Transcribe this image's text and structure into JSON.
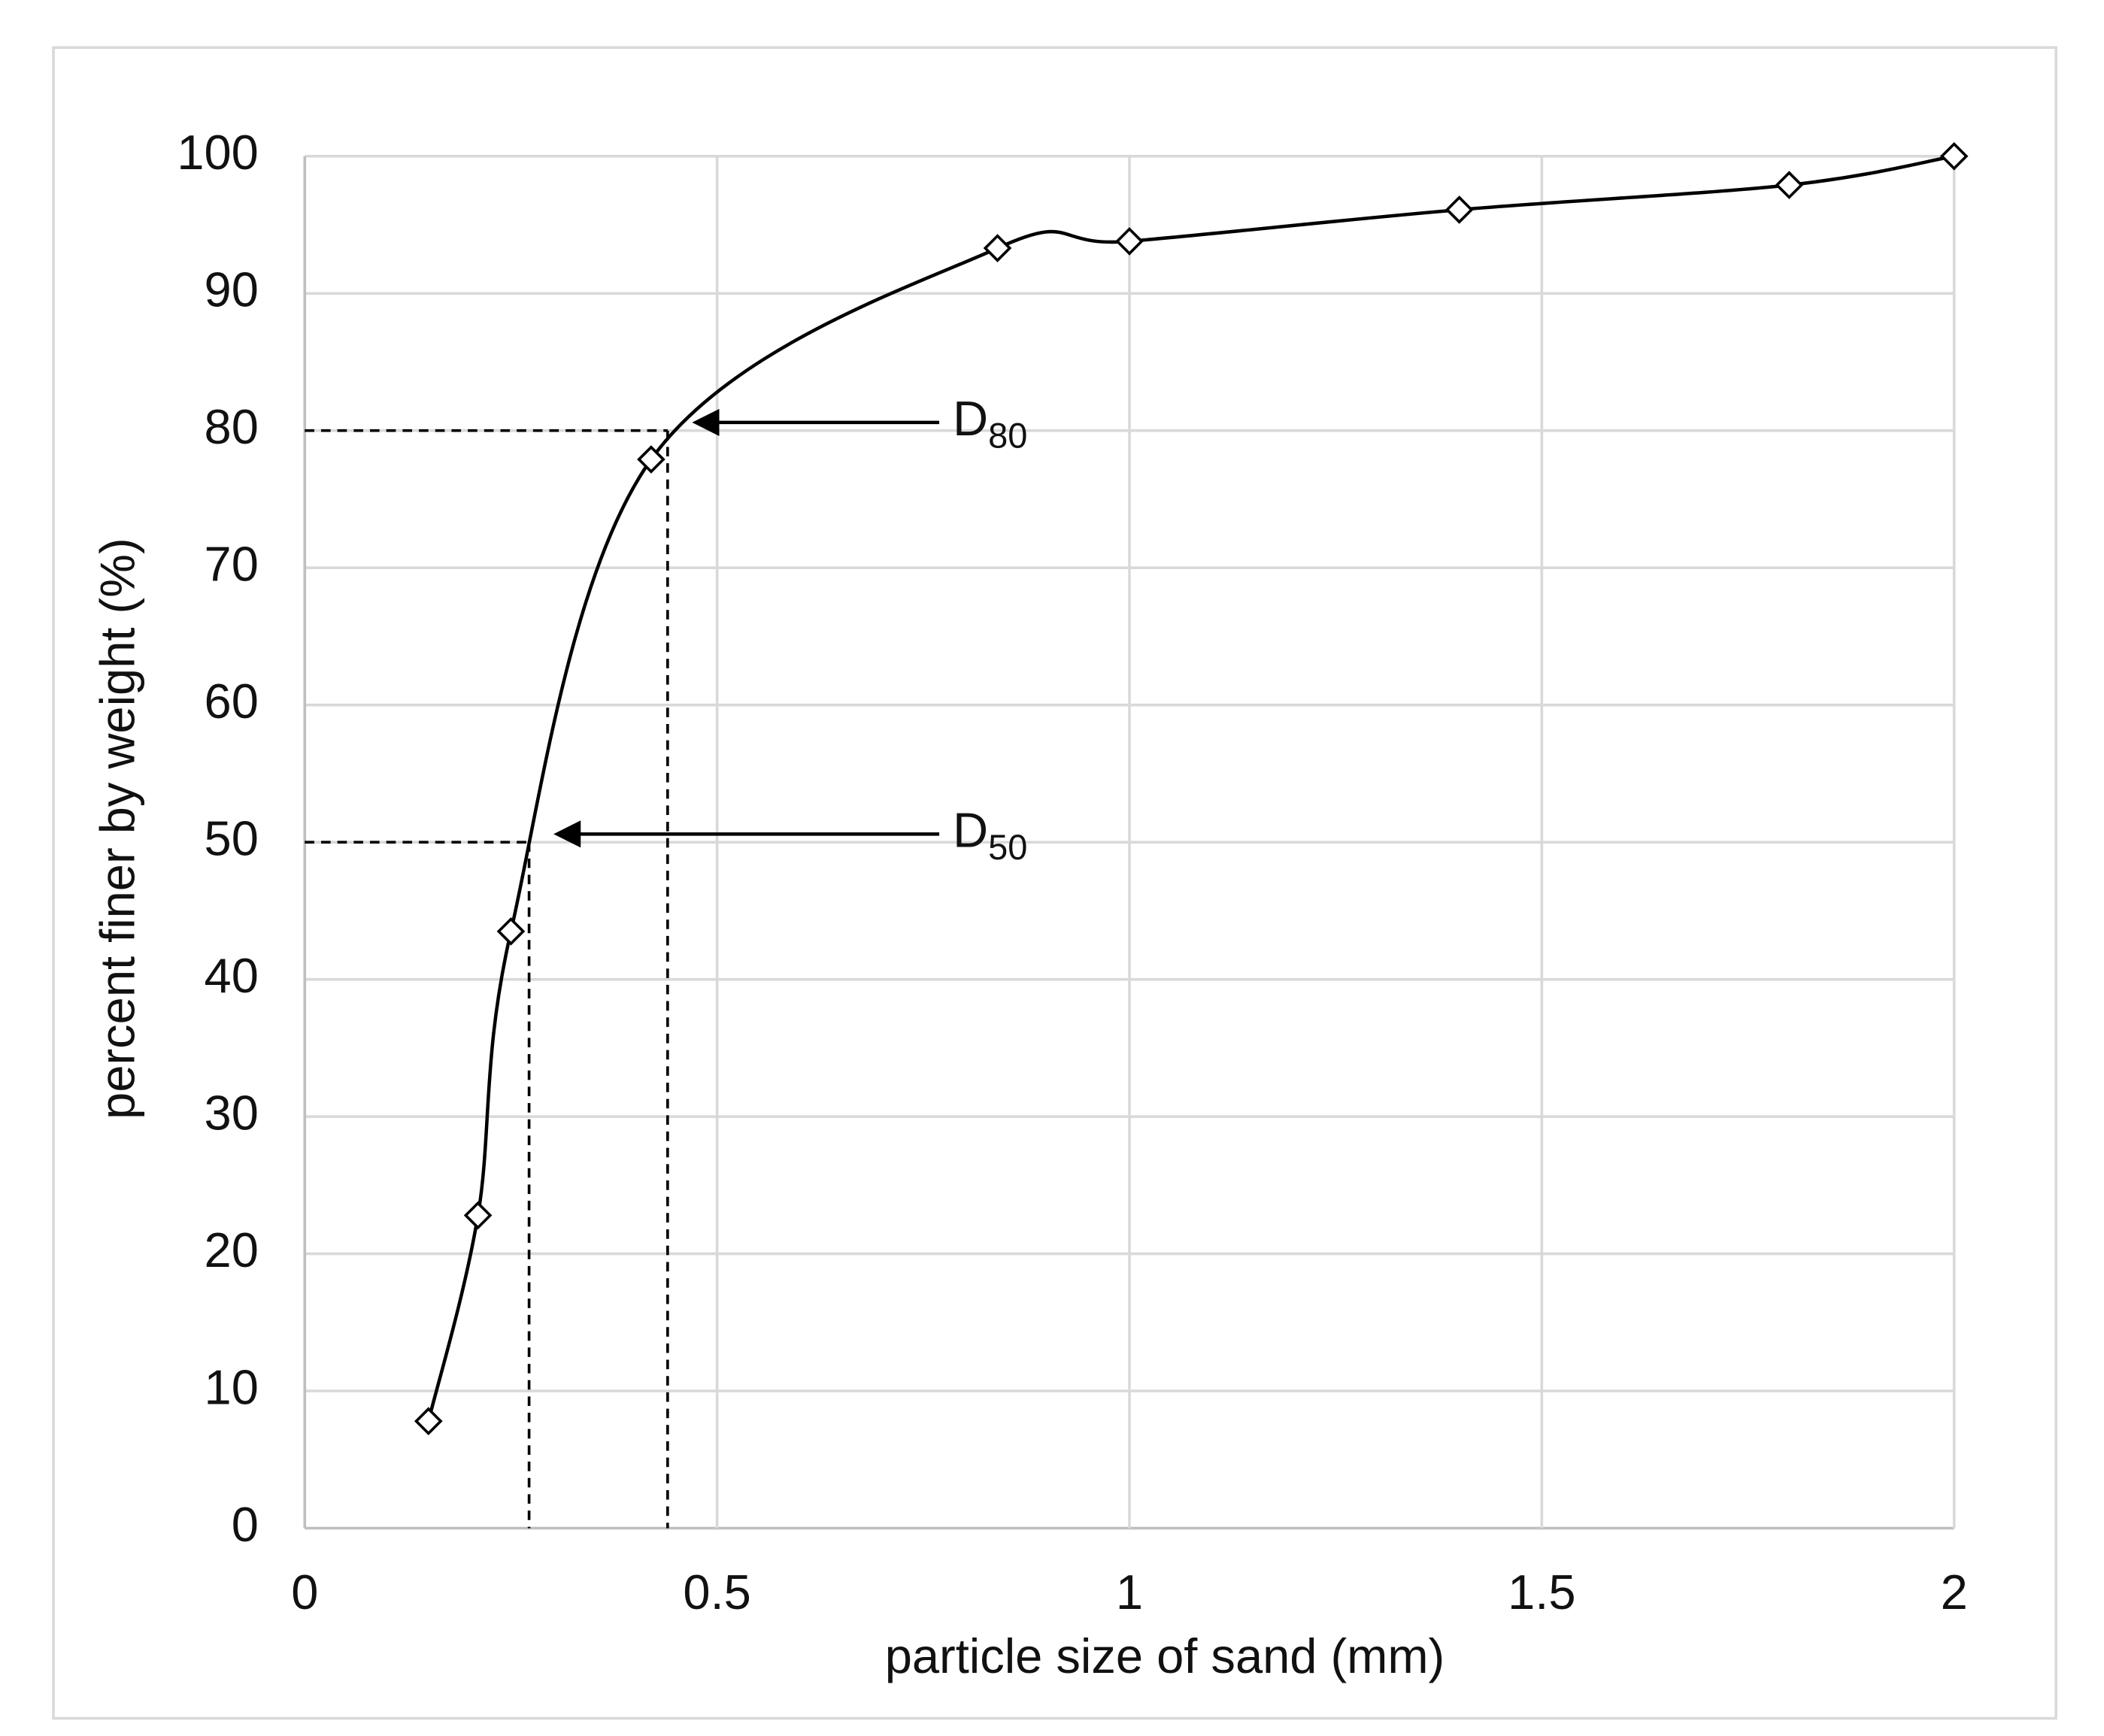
{
  "chart_data": {
    "type": "line",
    "xlabel": "particle size of sand (mm)",
    "ylabel": "percent finer by weight (%)",
    "x": [
      0.15,
      0.21,
      0.25,
      0.42,
      0.84,
      1,
      1.4,
      1.8,
      2
    ],
    "values": [
      7.8,
      22.8,
      43.5,
      77.9,
      93.3,
      93.8,
      96.1,
      97.9,
      100
    ],
    "color": "#000000",
    "smooth": true,
    "marker": "diamond",
    "xlim": [
      0,
      2
    ],
    "xticks": [
      0,
      0.5,
      1,
      1.5,
      2
    ],
    "ylim": [
      0,
      100
    ],
    "yticks": [
      0,
      10,
      20,
      30,
      40,
      50,
      60,
      70,
      80,
      90,
      100
    ],
    "grid": true,
    "annotations": [
      {
        "label": "D",
        "subscript": "80",
        "x": 0.44,
        "y": 80
      },
      {
        "label": "D",
        "subscript": "50",
        "x": 0.272,
        "y": 50
      }
    ]
  }
}
